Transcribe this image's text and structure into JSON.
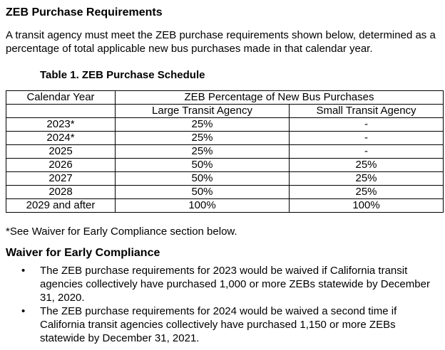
{
  "heading": "ZEB Purchase Requirements",
  "intro": "A transit agency must meet the ZEB purchase requirements shown below, determined as a percentage of total applicable new bus purchases made in that calendar year.",
  "table": {
    "title": "Table 1. ZEB Purchase Schedule",
    "header_year": "Calendar Year",
    "header_group": "ZEB Percentage of  New Bus Purchases",
    "header_large": "Large Transit Agency",
    "header_small": "Small Transit Agency",
    "rows": [
      {
        "year": "2023*",
        "large": "25%",
        "small": "-"
      },
      {
        "year": "2024*",
        "large": "25%",
        "small": "-"
      },
      {
        "year": "2025",
        "large": "25%",
        "small": "-"
      },
      {
        "year": "2026",
        "large": "50%",
        "small": "25%"
      },
      {
        "year": "2027",
        "large": "50%",
        "small": "25%"
      },
      {
        "year": "2028",
        "large": "50%",
        "small": "25%"
      },
      {
        "year": "2029 and after",
        "large": "100%",
        "small": "100%"
      }
    ]
  },
  "footnote": "*See Waiver for Early Compliance section below.",
  "waiver": {
    "heading": "Waiver for Early Compliance",
    "bullet_char": "•",
    "bullets": [
      "The ZEB purchase requirements for 2023 would be waived if California transit agencies collectively have purchased 1,000 or more ZEBs statewide by December 31, 2020.",
      "The ZEB purchase requirements for 2024 would be waived a second time if California transit agencies collectively have purchased 1,150 or more ZEBs statewide by December 31, 2021."
    ]
  }
}
